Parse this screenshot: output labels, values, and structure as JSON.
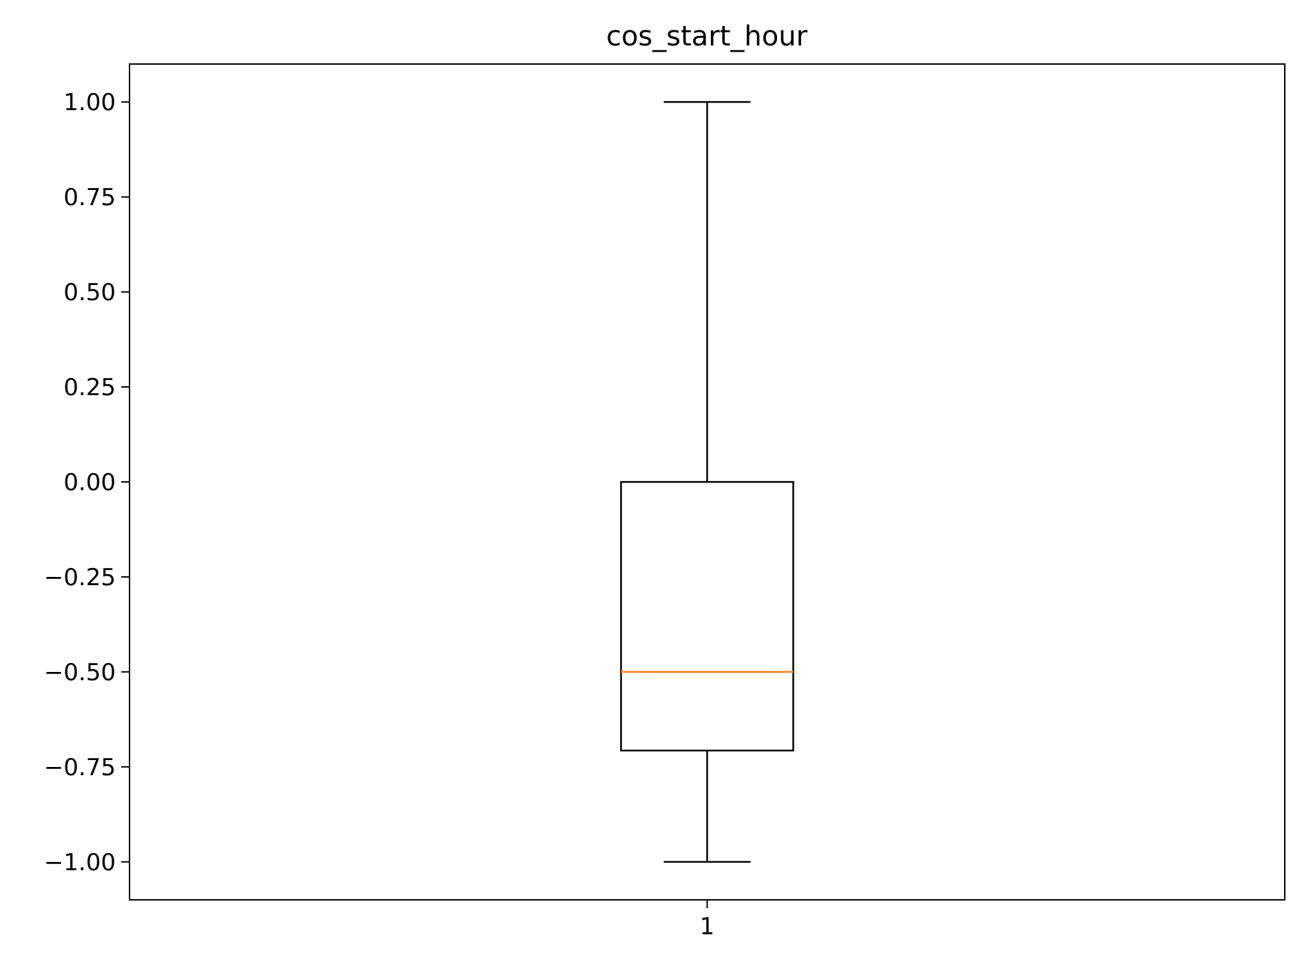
{
  "chart_data": {
    "type": "box",
    "title": "cos_start_hour",
    "xlabel": "",
    "ylabel": "",
    "categories": [
      "1"
    ],
    "boxes": [
      {
        "category": "1",
        "whisker_low": -1.0,
        "q1": -0.707,
        "median": -0.5,
        "q3": 0.0,
        "whisker_high": 1.0
      }
    ],
    "ylim": [
      -1.1,
      1.1
    ],
    "yticks": [
      -1.0,
      -0.75,
      -0.5,
      -0.25,
      0.0,
      0.25,
      0.5,
      0.75,
      1.0
    ],
    "ytick_labels": [
      "−1.00",
      "−0.75",
      "−0.50",
      "−0.25",
      "0.00",
      "0.25",
      "0.50",
      "0.75",
      "1.00"
    ],
    "grid": false,
    "colors": {
      "box": "#000000",
      "median": "#ff7f0e",
      "axes": "#000000"
    }
  }
}
